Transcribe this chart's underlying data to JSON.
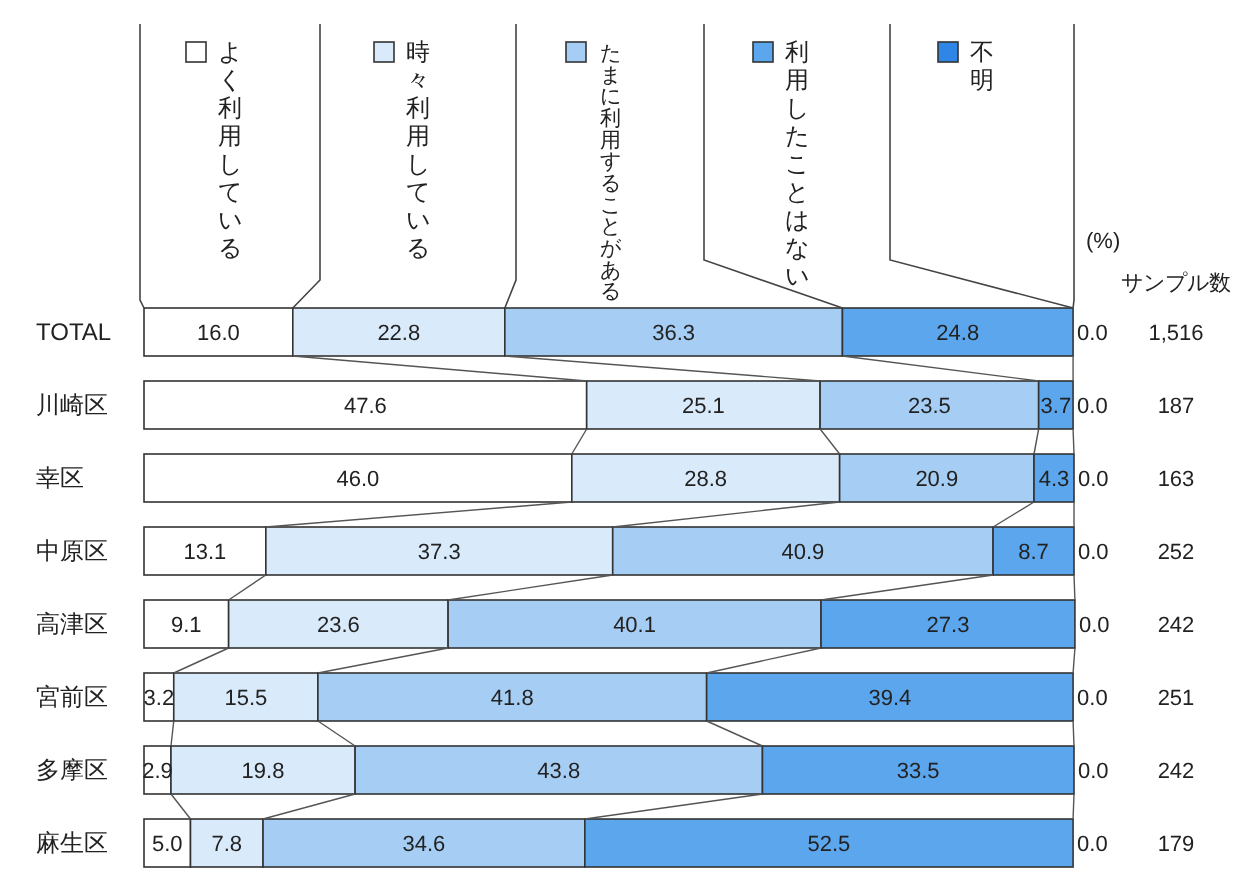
{
  "chart_data": {
    "type": "bar",
    "orientation": "horizontal",
    "stacked": true,
    "data_labels": true,
    "legend": "top",
    "xlim": [
      0,
      100
    ],
    "categories": [
      "TOTAL",
      "川崎区",
      "幸区",
      "中原区",
      "高津区",
      "宮前区",
      "多摩区",
      "麻生区"
    ],
    "y2_categories": [
      "1,516",
      "187",
      "163",
      "252",
      "242",
      "251",
      "242",
      "179"
    ],
    "annotations": [
      "(%)",
      "サンプル数"
    ],
    "series": [
      {
        "name": "よく利用している",
        "color": "#ffffff",
        "values": [
          16.0,
          47.6,
          46.0,
          13.1,
          9.1,
          3.2,
          2.9,
          5.0
        ],
        "value_labels": [
          "16.0",
          "47.6",
          "46.0",
          "13.1",
          "9.1",
          "3.2",
          "2.9",
          "5.0"
        ]
      },
      {
        "name": "時々利用している",
        "color": "#d9eafb",
        "values": [
          22.8,
          25.1,
          28.8,
          37.3,
          23.6,
          15.5,
          19.8,
          7.8
        ]
      },
      {
        "name": "たまに利用することがある",
        "color": "#a6cdf3",
        "values": [
          36.3,
          23.5,
          20.9,
          40.9,
          40.1,
          41.8,
          43.8,
          34.6
        ]
      },
      {
        "name": "利用したことはない",
        "color": "#5ba6ec",
        "values": [
          24.8,
          3.7,
          4.3,
          8.7,
          27.3,
          39.4,
          33.5,
          52.5
        ]
      },
      {
        "name": "不明",
        "color": "#2f86e6",
        "values": [
          0.0,
          0.0,
          0.0,
          0.0,
          0.0,
          0.0,
          0.0,
          0.0
        ],
        "value_labels": [
          "0.0",
          "0.0",
          "0.0",
          "0.0",
          "0.0",
          "0.0",
          "0.0",
          "0.0"
        ]
      }
    ]
  }
}
